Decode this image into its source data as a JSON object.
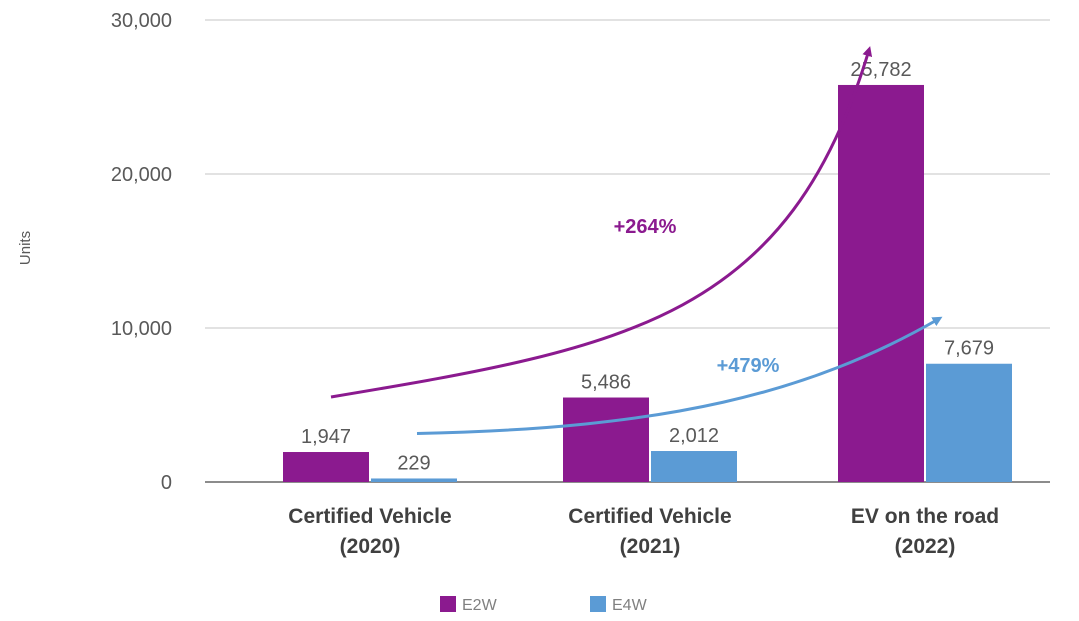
{
  "chart_data": {
    "type": "bar",
    "ylabel": "Units",
    "ylim": [
      0,
      30000
    ],
    "yticks": [
      "0",
      "10,000",
      "20,000",
      "30,000"
    ],
    "ytick_values": [
      0,
      10000,
      20000,
      30000
    ],
    "grid": true,
    "legend_position": "bottom",
    "categories": [
      [
        "Certified Vehicle",
        "(2020)"
      ],
      [
        "Certified Vehicle",
        "(2021)"
      ],
      [
        "EV on the road",
        "(2022)"
      ]
    ],
    "series": [
      {
        "name": "E2W",
        "color": "#8B1A8F",
        "values": [
          1947,
          5486,
          25782
        ],
        "labels": [
          "1,947",
          "5,486",
          "25,782"
        ]
      },
      {
        "name": "E4W",
        "color": "#5B9BD5",
        "values": [
          229,
          2012,
          7679
        ],
        "labels": [
          "229",
          "2,012",
          "7,679"
        ]
      }
    ],
    "annotations": [
      {
        "text": "+264%",
        "series": "E2W",
        "color": "#8B1A8F"
      },
      {
        "text": "+479%",
        "series": "E4W",
        "color": "#5B9BD5"
      }
    ]
  }
}
